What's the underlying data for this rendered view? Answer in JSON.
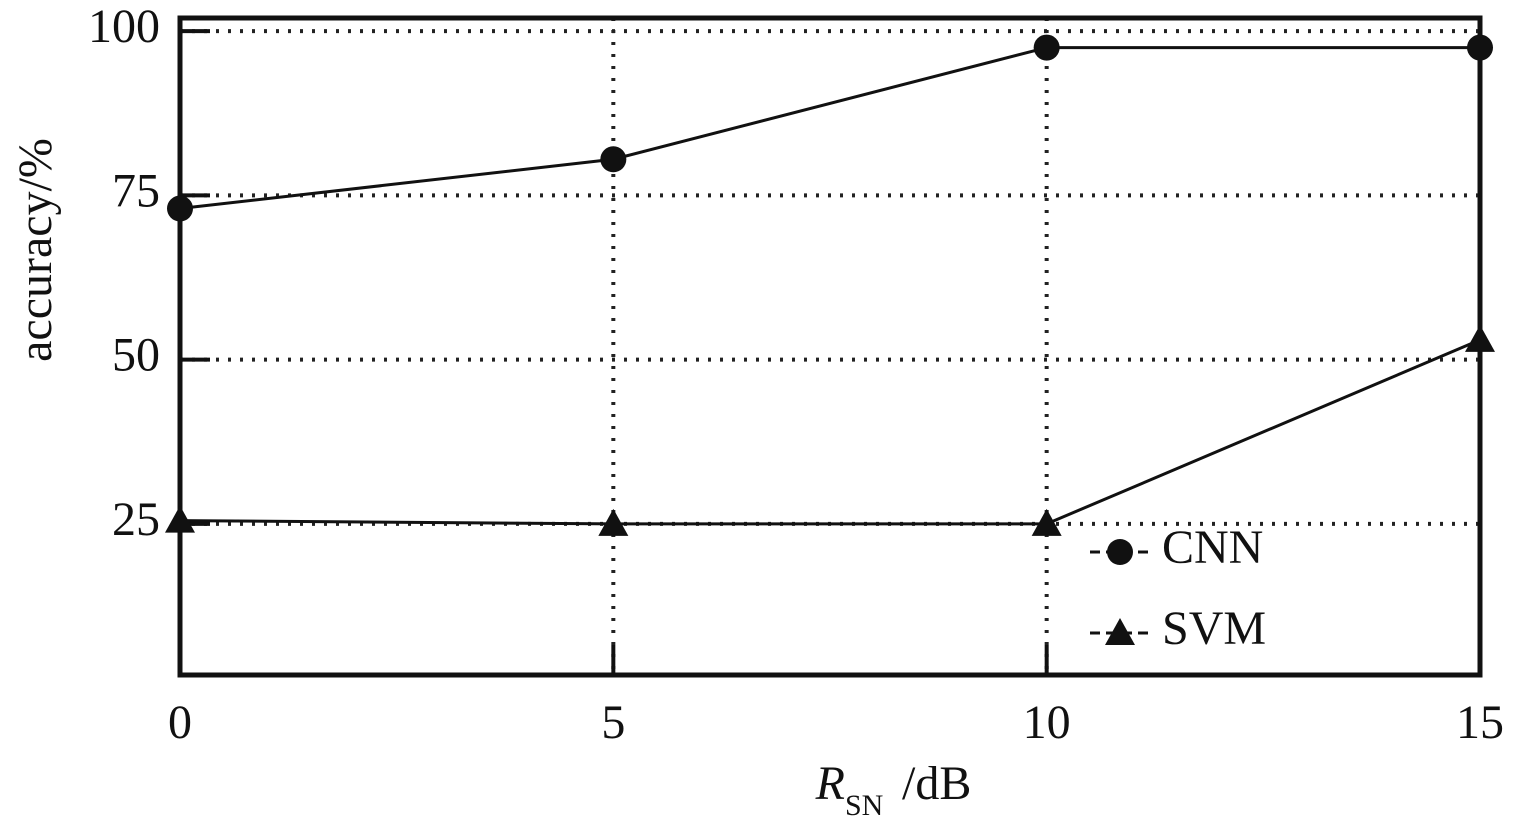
{
  "chart_data": {
    "type": "line",
    "x_label": {
      "main": "R",
      "sub": "SN",
      "rest": "/dB"
    },
    "y_label": "accuracy/%",
    "x": [
      0,
      5,
      10,
      15
    ],
    "series": [
      {
        "name": "CNN",
        "marker": "circle",
        "color": "#111111",
        "values": [
          73,
          80.5,
          97.5,
          97.5
        ]
      },
      {
        "name": "SVM",
        "marker": "triangle",
        "color": "#111111",
        "values": [
          25.5,
          25,
          25,
          53
        ]
      }
    ],
    "xlim": [
      0,
      15
    ],
    "xticks": [
      0,
      5,
      10,
      15
    ],
    "ylim": [
      2,
      102
    ],
    "yticks": [
      25,
      50,
      75,
      100
    ],
    "grid": true,
    "legend": "lower-right"
  }
}
